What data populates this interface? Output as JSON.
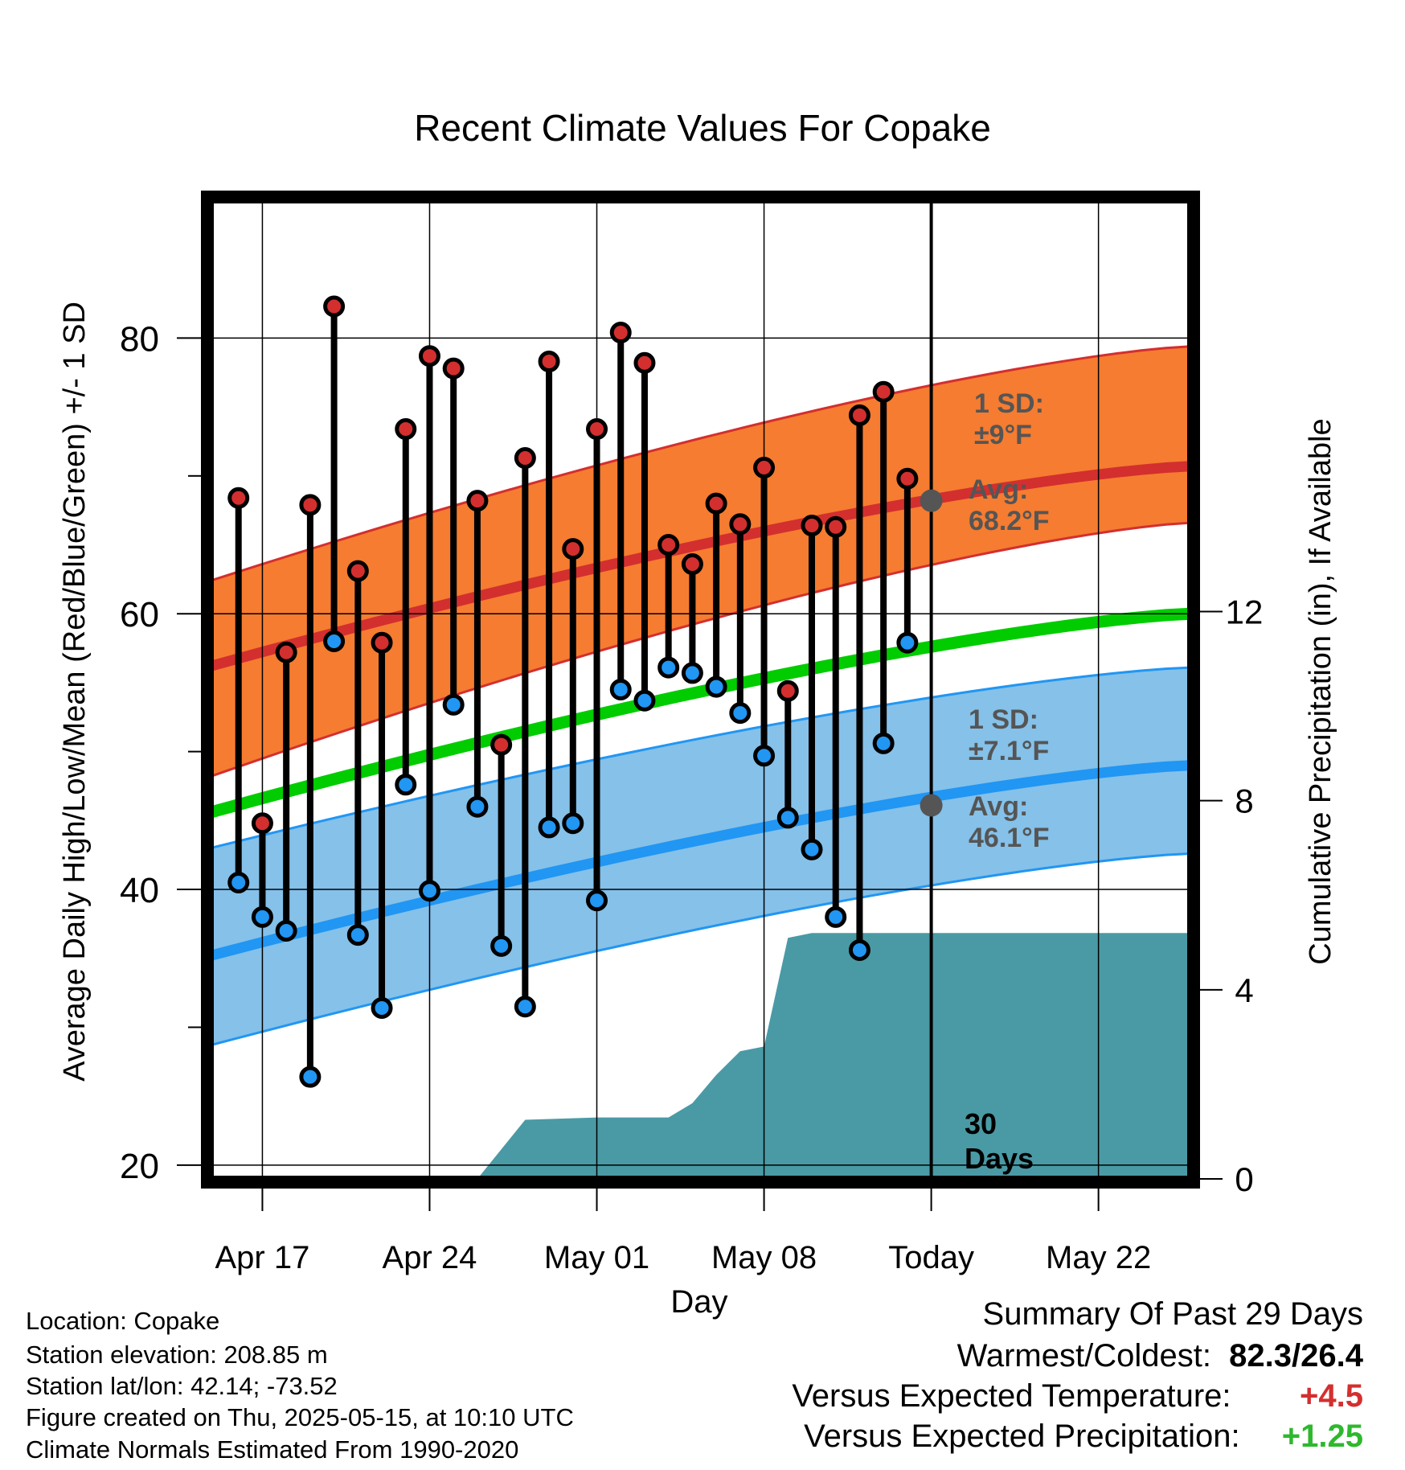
{
  "chart_data": {
    "type": "line",
    "title": "Recent Climate Values For Copake",
    "xlabel": "Day",
    "ylabel": "Average Daily High/Low/Mean (Red/Blue/Green) +/- 1 SD",
    "y2label": "Cumulative Precipitation (in), If Available",
    "x_tick_labels": [
      "Apr 17",
      "Apr 24",
      "May 01",
      "May 08",
      "Today",
      "May 22"
    ],
    "x_tick_days": [
      2,
      9,
      16,
      23,
      30,
      37
    ],
    "ylim": [
      19,
      90
    ],
    "y_ticks": [
      20,
      40,
      60,
      80
    ],
    "y2lim": [
      0,
      20.7
    ],
    "y2_ticks": [
      0,
      4,
      8,
      12
    ],
    "grid": true,
    "today_label": "30 Days",
    "normals": {
      "high_mean": [
        56.2,
        70.7
      ],
      "high_sd_band": [
        [
          48.2,
          66.6
        ],
        [
          62.4,
          79.4
        ]
      ],
      "mean": [
        45.6,
        60.0
      ],
      "low_mean": [
        35.2,
        49.0
      ],
      "low_sd_band": [
        [
          28.7,
          42.6
        ],
        [
          43.0,
          56.1
        ]
      ],
      "high_annotation": {
        "sd": "1 SD:",
        "sd_value": "±9°F",
        "avg": "Avg:",
        "avg_value": "68.2°F",
        "value": 68.2
      },
      "low_annotation": {
        "sd": "1 SD:",
        "sd_value": "±7.1°F",
        "avg": "Avg:",
        "avg_value": "46.1°F",
        "value": 46.1
      }
    },
    "series": [
      {
        "name": "High",
        "color": "#d32f2f",
        "values": [
          68.4,
          44.8,
          57.2,
          67.9,
          82.3,
          63.1,
          57.9,
          73.4,
          78.7,
          77.8,
          68.2,
          50.5,
          71.3,
          78.3,
          64.7,
          73.4,
          80.4,
          78.2,
          65.0,
          63.6,
          68.0,
          66.5,
          70.6,
          54.4,
          66.4,
          66.3,
          74.4,
          76.1,
          69.8
        ]
      },
      {
        "name": "Low",
        "color": "#2196f3",
        "values": [
          40.5,
          38.0,
          37.0,
          26.4,
          58.0,
          36.7,
          31.4,
          47.6,
          39.9,
          53.4,
          46.0,
          35.9,
          31.5,
          44.5,
          44.8,
          39.2,
          54.5,
          53.7,
          56.1,
          55.7,
          54.7,
          52.8,
          49.7,
          45.2,
          42.9,
          38.0,
          35.6,
          50.6,
          57.9
        ]
      },
      {
        "name": "Cumulative Precipitation",
        "x": [
          11,
          13,
          16,
          19,
          20,
          21,
          22,
          23,
          24,
          25,
          37
        ],
        "values": [
          0,
          1.25,
          1.3,
          1.3,
          1.6,
          2.2,
          2.7,
          2.8,
          5.1,
          5.2,
          5.2
        ]
      }
    ]
  },
  "footer": {
    "location": "Location: Copake",
    "elevation": "Station elevation: 208.85 m",
    "latlon": "Station lat/lon: 42.14; -73.52",
    "created": "Figure created on Thu, 2025-05-15, at 10:10 UTC",
    "normals": "Climate Normals Estimated From 1990-2020"
  },
  "summary": {
    "heading": "Summary Of Past 29 Days",
    "warmest_label": "Warmest/Coldest:",
    "warmest_value": "82.3/26.4",
    "temp_label": "Versus Expected Temperature:",
    "temp_value": "+4.5",
    "precip_label": "Versus Expected Precipitation:",
    "precip_value": "+1.25"
  }
}
